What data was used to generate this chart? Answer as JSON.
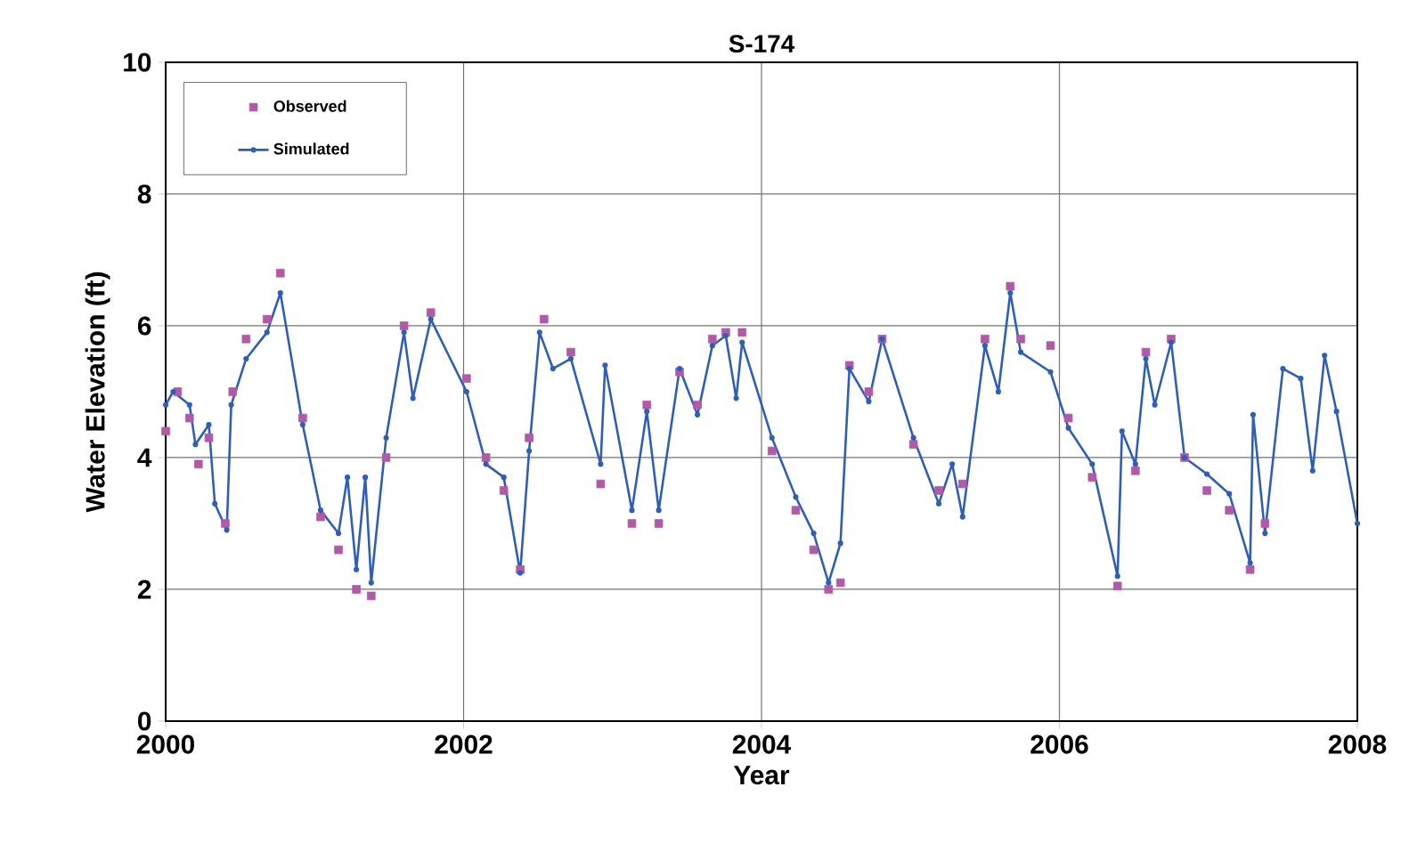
{
  "chart_data": {
    "type": "line",
    "title": "S-174",
    "xlabel": "Year",
    "ylabel": "Water Elevation (ft)",
    "xlim": [
      2000,
      2008
    ],
    "ylim": [
      0,
      10
    ],
    "xticks": [
      2000,
      2002,
      2004,
      2006,
      2008
    ],
    "yticks": [
      0,
      2,
      4,
      6,
      8,
      10
    ],
    "grid": true,
    "legend": "top left",
    "series": [
      {
        "name": "Observed",
        "type": "scatter",
        "marker": "square",
        "color": "#b05aa8",
        "x": [
          2000.0,
          2000.08,
          2000.16,
          2000.22,
          2000.29,
          2000.4,
          2000.45,
          2000.54,
          2000.68,
          2000.77,
          2000.92,
          2001.04,
          2001.16,
          2001.28,
          2001.38,
          2001.48,
          2001.6,
          2001.78,
          2002.02,
          2002.15,
          2002.27,
          2002.38,
          2002.44,
          2002.54,
          2002.72,
          2002.92,
          2003.13,
          2003.23,
          2003.31,
          2003.45,
          2003.57,
          2003.67,
          2003.76,
          2003.87,
          2004.07,
          2004.23,
          2004.35,
          2004.45,
          2004.53,
          2004.59,
          2004.72,
          2004.81,
          2005.02,
          2005.19,
          2005.35,
          2005.5,
          2005.67,
          2005.74,
          2005.94,
          2006.06,
          2006.22,
          2006.39,
          2006.51,
          2006.58,
          2006.75,
          2006.84,
          2006.99,
          2007.14,
          2007.28,
          2007.38
        ],
        "values": [
          4.4,
          5.0,
          4.6,
          3.9,
          4.3,
          3.0,
          5.0,
          5.8,
          6.1,
          6.8,
          4.6,
          3.1,
          2.6,
          2.0,
          1.9,
          4.0,
          6.0,
          6.2,
          5.2,
          4.0,
          3.5,
          2.3,
          4.3,
          6.1,
          5.6,
          3.6,
          3.0,
          4.8,
          3.0,
          5.3,
          4.8,
          5.8,
          5.9,
          5.9,
          4.1,
          3.2,
          2.6,
          2.0,
          2.1,
          5.4,
          5.0,
          5.8,
          4.2,
          3.5,
          3.6,
          5.8,
          6.6,
          5.8,
          5.7,
          4.6,
          3.7,
          2.05,
          3.8,
          5.6,
          5.8,
          4.0,
          3.5,
          3.2,
          2.3,
          3.0
        ]
      },
      {
        "name": "Simulated",
        "marker": "circle",
        "color": "#2f5fb5",
        "x": [
          2000.0,
          2000.05,
          2000.16,
          2000.2,
          2000.29,
          2000.33,
          2000.41,
          2000.44,
          2000.54,
          2000.68,
          2000.77,
          2000.92,
          2001.04,
          2001.16,
          2001.22,
          2001.28,
          2001.34,
          2001.38,
          2001.48,
          2001.6,
          2001.66,
          2001.78,
          2002.02,
          2002.15,
          2002.27,
          2002.38,
          2002.44,
          2002.51,
          2002.6,
          2002.72,
          2002.92,
          2002.95,
          2003.13,
          2003.23,
          2003.31,
          2003.45,
          2003.57,
          2003.67,
          2003.76,
          2003.83,
          2003.87,
          2004.07,
          2004.23,
          2004.35,
          2004.45,
          2004.53,
          2004.59,
          2004.72,
          2004.81,
          2005.02,
          2005.19,
          2005.28,
          2005.35,
          2005.5,
          2005.59,
          2005.67,
          2005.74,
          2005.94,
          2006.06,
          2006.22,
          2006.39,
          2006.42,
          2006.51,
          2006.58,
          2006.64,
          2006.75,
          2006.84,
          2006.99,
          2007.14,
          2007.28,
          2007.3,
          2007.38,
          2007.5,
          2007.62,
          2007.7,
          2007.78,
          2007.86,
          2008.0
        ],
        "values": [
          4.8,
          5.0,
          4.8,
          4.2,
          4.5,
          3.3,
          2.9,
          4.8,
          5.5,
          5.9,
          6.5,
          4.5,
          3.2,
          2.85,
          3.7,
          2.3,
          3.7,
          2.1,
          4.3,
          5.9,
          4.9,
          6.1,
          5.0,
          3.9,
          3.7,
          2.25,
          4.1,
          5.9,
          5.35,
          5.5,
          3.9,
          5.4,
          3.2,
          4.7,
          3.2,
          5.35,
          4.65,
          5.7,
          5.85,
          4.9,
          5.75,
          4.3,
          3.4,
          2.85,
          2.1,
          2.7,
          5.35,
          4.85,
          5.8,
          4.3,
          3.3,
          3.9,
          3.1,
          5.7,
          5.0,
          6.5,
          5.6,
          5.3,
          4.45,
          3.9,
          2.2,
          4.4,
          3.9,
          5.5,
          4.8,
          5.75,
          4.0,
          3.75,
          3.45,
          2.4,
          4.65,
          2.85,
          5.35,
          5.2,
          3.8,
          5.55,
          4.7,
          3.0
        ]
      }
    ]
  }
}
